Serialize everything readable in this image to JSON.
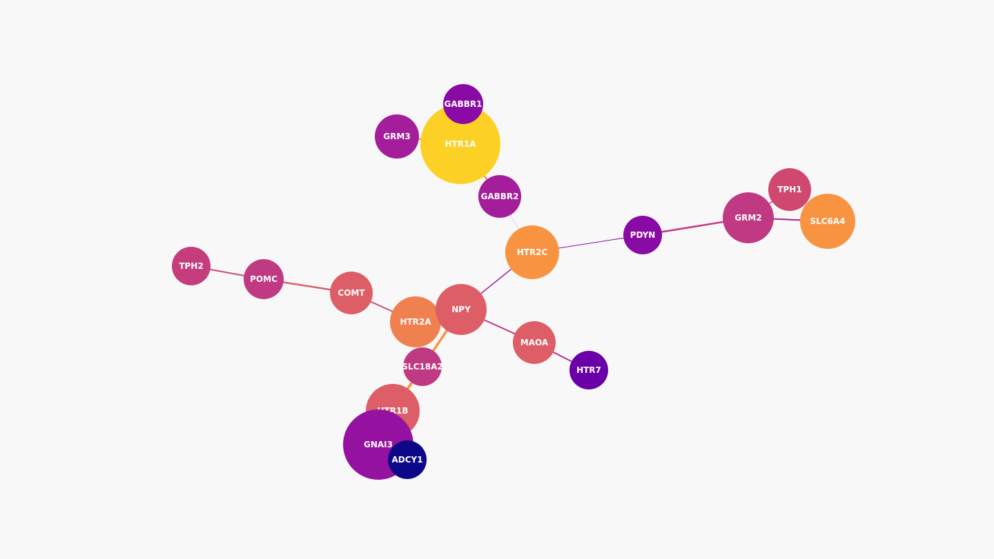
{
  "background": "#f8f8f8",
  "nodes": [
    {
      "id": "HTR1A",
      "label": "HTR1A",
      "color": "#fcd025"
    },
    {
      "id": "GABBR1",
      "label": "GABBR1",
      "color": "#8a0aa5"
    },
    {
      "id": "GRM3",
      "label": "GRM3",
      "color": "#a41e9b"
    },
    {
      "id": "GABBR2",
      "label": "GABBR2",
      "color": "#a41e9b"
    },
    {
      "id": "HTR2C",
      "label": "HTR2C",
      "color": "#f89441"
    },
    {
      "id": "PDYN",
      "label": "PDYN",
      "color": "#8a0aa5"
    },
    {
      "id": "GRM2",
      "label": "GRM2",
      "color": "#c03a83"
    },
    {
      "id": "TPH1",
      "label": "TPH1",
      "color": "#d0476f"
    },
    {
      "id": "SLC6A4",
      "label": "SLC6A4",
      "color": "#f89441"
    },
    {
      "id": "TPH2",
      "label": "TPH2",
      "color": "#c63d7e"
    },
    {
      "id": "POMC",
      "label": "POMC",
      "color": "#c03a83"
    },
    {
      "id": "COMT",
      "label": "COMT",
      "color": "#dd5e66"
    },
    {
      "id": "HTR2A",
      "label": "HTR2A",
      "color": "#f0804f"
    },
    {
      "id": "NPY",
      "label": "NPY",
      "color": "#dd5e66"
    },
    {
      "id": "MAOA",
      "label": "MAOA",
      "color": "#dd5e66"
    },
    {
      "id": "HTR7",
      "label": "HTR7",
      "color": "#6a00a8"
    },
    {
      "id": "SLC18A2",
      "label": "SLC18A2",
      "color": "#c03a83"
    },
    {
      "id": "HTR1B",
      "label": "HTR1B",
      "color": "#dd5e66"
    },
    {
      "id": "GNAI3",
      "label": "GNAI3",
      "color": "#9512a1"
    },
    {
      "id": "ADCY1",
      "label": "ADCY1",
      "color": "#0d0887"
    }
  ],
  "edges": [
    {
      "source": "TPH2",
      "target": "POMC",
      "color": "#cc4778",
      "weight": 2
    },
    {
      "source": "POMC",
      "target": "COMT",
      "color": "#dd5e66",
      "weight": 2.5
    },
    {
      "source": "COMT",
      "target": "HTR2A",
      "color": "#cc4778",
      "weight": 2
    },
    {
      "source": "HTR2A",
      "target": "NPY",
      "color": "#dd5e66",
      "weight": 2
    },
    {
      "source": "NPY",
      "target": "HTR2C",
      "color": "#a41e9b",
      "weight": 1.5
    },
    {
      "source": "NPY",
      "target": "MAOA",
      "color": "#c03a83",
      "weight": 2
    },
    {
      "source": "MAOA",
      "target": "HTR7",
      "color": "#b52f8c",
      "weight": 2
    },
    {
      "source": "NPY",
      "target": "SLC18A2",
      "color": "#f89441",
      "weight": 3.5
    },
    {
      "source": "SLC18A2",
      "target": "HTR1B",
      "color": "#f89441",
      "weight": 4
    },
    {
      "source": "HTR1B",
      "target": "GNAI3",
      "color": "#dd5e66",
      "weight": 2
    },
    {
      "source": "GNAI3",
      "target": "ADCY1",
      "color": "#6a00a8",
      "weight": 2
    },
    {
      "source": "HTR2C",
      "target": "GABBR2",
      "color": "#d8d8ee",
      "weight": 1
    },
    {
      "source": "GABBR2",
      "target": "HTR1A",
      "color": "#f0804f",
      "weight": 2
    },
    {
      "source": "HTR1A",
      "target": "GRM3",
      "color": "#f89441",
      "weight": 2
    },
    {
      "source": "HTR1A",
      "target": "GABBR1",
      "color": "#e3a52b",
      "weight": 2
    },
    {
      "source": "HTR2C",
      "target": "PDYN",
      "color": "#8a0aa5",
      "weight": 1
    },
    {
      "source": "PDYN",
      "target": "GRM2",
      "color": "#c03a83",
      "weight": 2.5
    },
    {
      "source": "GRM2",
      "target": "TPH1",
      "color": "#c63d7e",
      "weight": 1.5
    },
    {
      "source": "GRM2",
      "target": "SLC6A4",
      "color": "#a41e9b",
      "weight": 2
    }
  ]
}
